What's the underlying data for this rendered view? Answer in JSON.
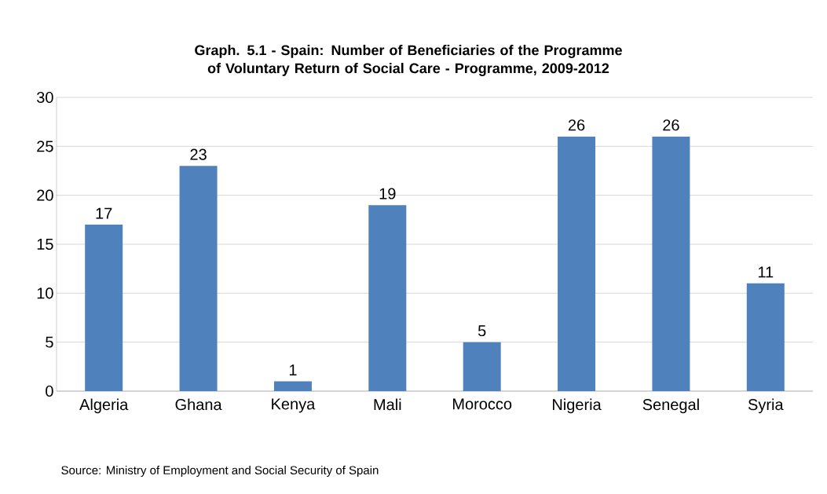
{
  "chart_data": {
    "type": "bar",
    "title": "Graph. 5.1 - Spain: Number of Beneficiaries of the Programme of Voluntary Return of Social Care - Programme, 2009-2012",
    "categories": [
      "Algeria",
      "Ghana",
      "Kenya",
      "Mali",
      "Morocco",
      "Nigeria",
      "Senegal",
      "Syria"
    ],
    "values": [
      17,
      23,
      1,
      19,
      5,
      26,
      26,
      11
    ],
    "color": "#4f81bd",
    "ylim": [
      0,
      30
    ],
    "yticks": [
      0,
      5,
      10,
      15,
      20,
      25,
      30
    ],
    "grid": "y",
    "data_labels": true,
    "annotations": [
      "Source:  Ministry of Employment and Social Security of Spain"
    ]
  }
}
